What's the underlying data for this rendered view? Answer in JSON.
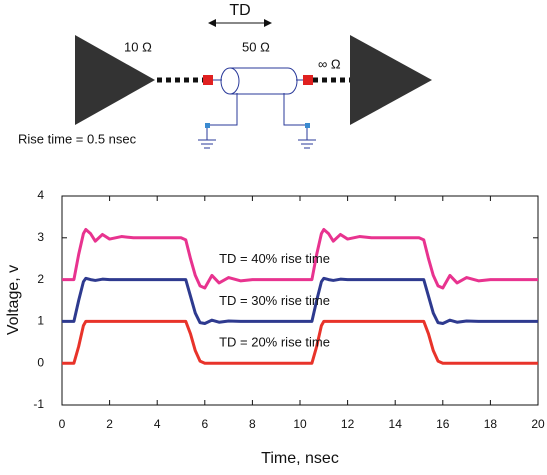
{
  "diagram": {
    "td": "TD",
    "source_impedance": "10 Ω",
    "line_impedance": "50 Ω",
    "load_impedance": "∞ Ω",
    "rise_time": "Rise time = 0.5 nsec"
  },
  "chart_data": {
    "type": "line",
    "x_label": "Time, nsec",
    "y_label": "Voltage, v",
    "x": [
      0,
      0.5,
      0.7,
      0.9,
      1.0,
      1.2,
      1.4,
      1.7,
      2.0,
      2.5,
      3,
      4,
      5,
      5.2,
      5.4,
      5.6,
      5.8,
      6.0,
      6.3,
      6.6,
      7.0,
      7.5,
      8,
      9,
      10,
      10.5,
      10.7,
      10.9,
      11.0,
      11.2,
      11.4,
      11.7,
      12,
      12.5,
      13,
      14,
      15,
      15.2,
      15.4,
      15.6,
      15.8,
      16,
      16.3,
      16.6,
      17,
      17.5,
      18,
      19,
      20
    ],
    "series": [
      {
        "name": "TD = 40% rise time",
        "color": "#e8338f",
        "values": [
          2,
          2,
          2.6,
          3.1,
          3.2,
          3.1,
          2.92,
          3.08,
          2.97,
          3.03,
          3,
          3,
          3,
          2.95,
          2.5,
          2.1,
          1.85,
          1.8,
          2.1,
          1.92,
          2.05,
          1.97,
          2,
          2,
          2,
          2,
          2.6,
          3.1,
          3.2,
          3.1,
          2.92,
          3.08,
          2.97,
          3.03,
          3,
          3,
          3,
          2.95,
          2.5,
          2.1,
          1.85,
          1.8,
          2.1,
          1.92,
          2.05,
          1.97,
          2,
          2,
          2
        ]
      },
      {
        "name": "TD = 30% rise time",
        "color": "#2e3a8f",
        "values": [
          1,
          1,
          1.5,
          1.95,
          2.03,
          2.0,
          1.98,
          2.01,
          2,
          2,
          2,
          2,
          2,
          2,
          1.6,
          1.2,
          0.97,
          0.95,
          1.03,
          0.98,
          1.01,
          1,
          1,
          1,
          1,
          1,
          1.5,
          1.95,
          2.03,
          2,
          1.98,
          2.01,
          2,
          2,
          2,
          2,
          2,
          2,
          1.6,
          1.2,
          0.97,
          0.95,
          1.03,
          0.98,
          1.01,
          1,
          1,
          1,
          1
        ]
      },
      {
        "name": "TD = 20% rise time",
        "color": "#e8332a",
        "values": [
          0,
          0,
          0.4,
          0.9,
          1,
          1,
          1,
          1,
          1,
          1,
          1,
          1,
          1,
          1,
          0.7,
          0.3,
          0.05,
          0,
          0,
          0,
          0,
          0,
          0,
          0,
          0,
          0,
          0.4,
          0.9,
          1,
          1,
          1,
          1,
          1,
          1,
          1,
          1,
          1,
          1,
          0.7,
          0.3,
          0.05,
          0,
          0,
          0,
          0,
          0,
          0,
          0,
          0
        ]
      }
    ],
    "xlim": [
      0,
      20
    ],
    "xticks": [
      0,
      2,
      4,
      6,
      8,
      10,
      12,
      14,
      16,
      18,
      20
    ],
    "ylim": [
      -1,
      4
    ],
    "yticks": [
      -1,
      0,
      1,
      2,
      3,
      4
    ]
  }
}
